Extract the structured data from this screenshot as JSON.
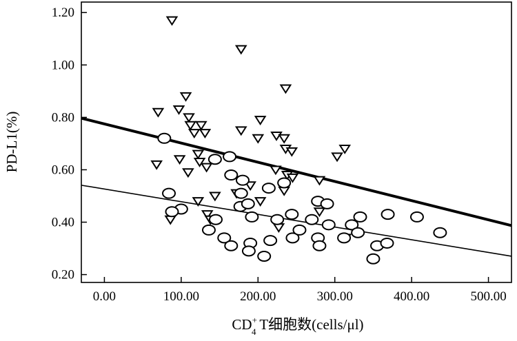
{
  "chart_data": {
    "type": "scatter",
    "title": "",
    "xlabel": "CD+4 T细胞数(cells/μl)",
    "ylabel": "PD-L1(%)",
    "xlabel_parts": {
      "pre": "CD",
      "sup": "+",
      "sub": "4",
      "post": " T细胞数(cells/μl)"
    },
    "xlim": [
      -30,
      530
    ],
    "ylim": [
      0.17,
      1.24
    ],
    "x_ticks": [
      "0.00",
      "100.00",
      "200.00",
      "300.00",
      "400.00",
      "500.00"
    ],
    "x_tick_values": [
      0,
      100,
      200,
      300,
      400,
      500
    ],
    "y_ticks": [
      "0.20",
      "0.40",
      "0.60",
      "0.80",
      "1.00",
      "1.20"
    ],
    "y_tick_values": [
      0.2,
      0.4,
      0.6,
      0.8,
      1.0,
      1.2
    ],
    "grid": false,
    "series": [
      {
        "marker": "triangle-down",
        "color": "#000000",
        "points": [
          [
            88,
            1.17
          ],
          [
            70,
            0.82
          ],
          [
            97,
            0.83
          ],
          [
            106,
            0.88
          ],
          [
            110,
            0.8
          ],
          [
            112,
            0.77
          ],
          [
            126,
            0.77
          ],
          [
            117,
            0.74
          ],
          [
            131,
            0.74
          ],
          [
            178,
            1.06
          ],
          [
            236,
            0.91
          ],
          [
            203,
            0.79
          ],
          [
            178,
            0.75
          ],
          [
            200,
            0.72
          ],
          [
            224,
            0.73
          ],
          [
            234,
            0.72
          ],
          [
            236,
            0.68
          ],
          [
            244,
            0.67
          ],
          [
            313,
            0.68
          ],
          [
            303,
            0.65
          ],
          [
            68,
            0.62
          ],
          [
            98,
            0.64
          ],
          [
            122,
            0.66
          ],
          [
            124,
            0.63
          ],
          [
            109,
            0.59
          ],
          [
            133,
            0.61
          ],
          [
            223,
            0.6
          ],
          [
            238,
            0.58
          ],
          [
            245,
            0.57
          ],
          [
            280,
            0.56
          ],
          [
            178,
            0.56
          ],
          [
            190,
            0.54
          ],
          [
            172,
            0.51
          ],
          [
            144,
            0.5
          ],
          [
            234,
            0.52
          ],
          [
            203,
            0.48
          ],
          [
            122,
            0.48
          ],
          [
            134,
            0.43
          ],
          [
            138,
            0.41
          ],
          [
            86,
            0.41
          ],
          [
            280,
            0.44
          ],
          [
            227,
            0.38
          ],
          [
            314,
            0.34
          ]
        ]
      },
      {
        "marker": "circle",
        "color": "#000000",
        "points": [
          [
            78,
            0.72
          ],
          [
            144,
            0.64
          ],
          [
            163,
            0.65
          ],
          [
            165,
            0.58
          ],
          [
            180,
            0.56
          ],
          [
            178,
            0.51
          ],
          [
            84,
            0.51
          ],
          [
            100,
            0.45
          ],
          [
            88,
            0.44
          ],
          [
            177,
            0.46
          ],
          [
            187,
            0.47
          ],
          [
            214,
            0.53
          ],
          [
            234,
            0.55
          ],
          [
            278,
            0.48
          ],
          [
            290,
            0.47
          ],
          [
            244,
            0.43
          ],
          [
            225,
            0.41
          ],
          [
            192,
            0.42
          ],
          [
            145,
            0.41
          ],
          [
            136,
            0.37
          ],
          [
            156,
            0.34
          ],
          [
            165,
            0.31
          ],
          [
            190,
            0.32
          ],
          [
            188,
            0.29
          ],
          [
            208,
            0.27
          ],
          [
            216,
            0.33
          ],
          [
            245,
            0.34
          ],
          [
            254,
            0.37
          ],
          [
            270,
            0.41
          ],
          [
            278,
            0.34
          ],
          [
            280,
            0.31
          ],
          [
            292,
            0.39
          ],
          [
            312,
            0.34
          ],
          [
            322,
            0.39
          ],
          [
            330,
            0.36
          ],
          [
            333,
            0.42
          ],
          [
            350,
            0.26
          ],
          [
            355,
            0.31
          ],
          [
            368,
            0.32
          ],
          [
            369,
            0.43
          ],
          [
            407,
            0.42
          ],
          [
            437,
            0.36
          ]
        ]
      }
    ],
    "lines": [
      {
        "style": "thick",
        "x": [
          -30,
          530
        ],
        "y": [
          0.797,
          0.387
        ]
      },
      {
        "style": "thin",
        "x": [
          -30,
          530
        ],
        "y": [
          0.541,
          0.27
        ]
      }
    ]
  }
}
